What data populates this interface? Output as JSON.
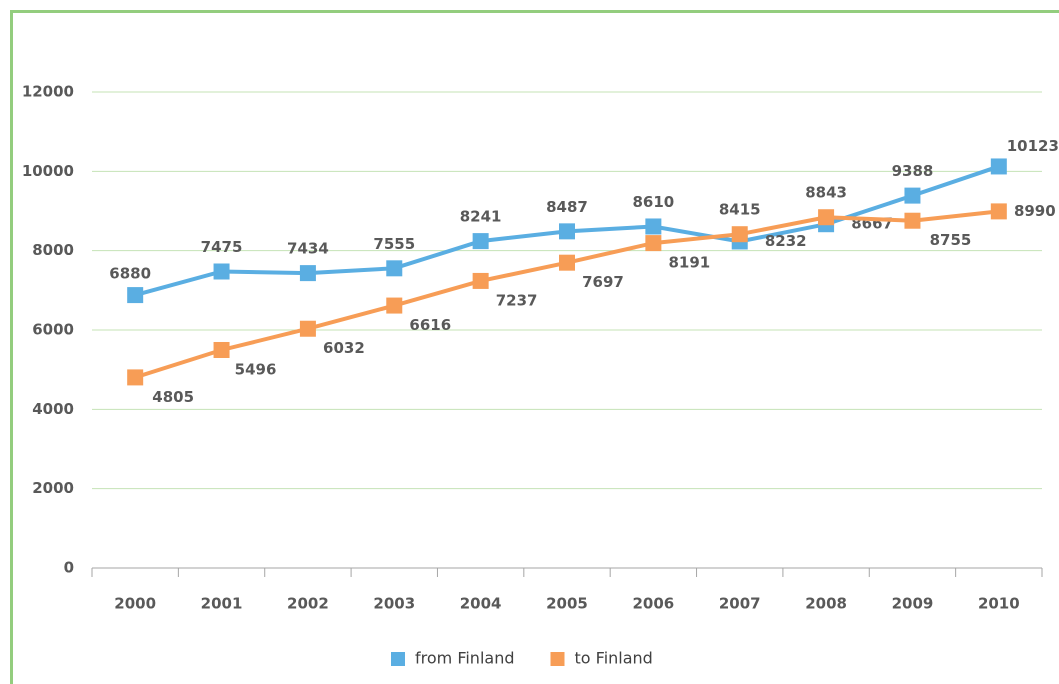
{
  "chart_data": {
    "type": "line",
    "categories": [
      "2000",
      "2001",
      "2002",
      "2003",
      "2004",
      "2005",
      "2006",
      "2007",
      "2008",
      "2009",
      "2010"
    ],
    "series": [
      {
        "name": "from Finland",
        "color": "#5aaee2",
        "values": [
          6880,
          7475,
          7434,
          7555,
          8241,
          8487,
          8610,
          8232,
          8667,
          9388,
          10123
        ]
      },
      {
        "name": "to Finland",
        "color": "#f79d56",
        "values": [
          4805,
          5496,
          6032,
          6616,
          7237,
          7697,
          8191,
          8415,
          8843,
          8755,
          8990
        ]
      }
    ],
    "ylim": [
      0,
      12000
    ],
    "yticks": [
      0,
      2000,
      4000,
      6000,
      8000,
      10000,
      12000
    ],
    "grid": true,
    "legend": "bottom"
  }
}
